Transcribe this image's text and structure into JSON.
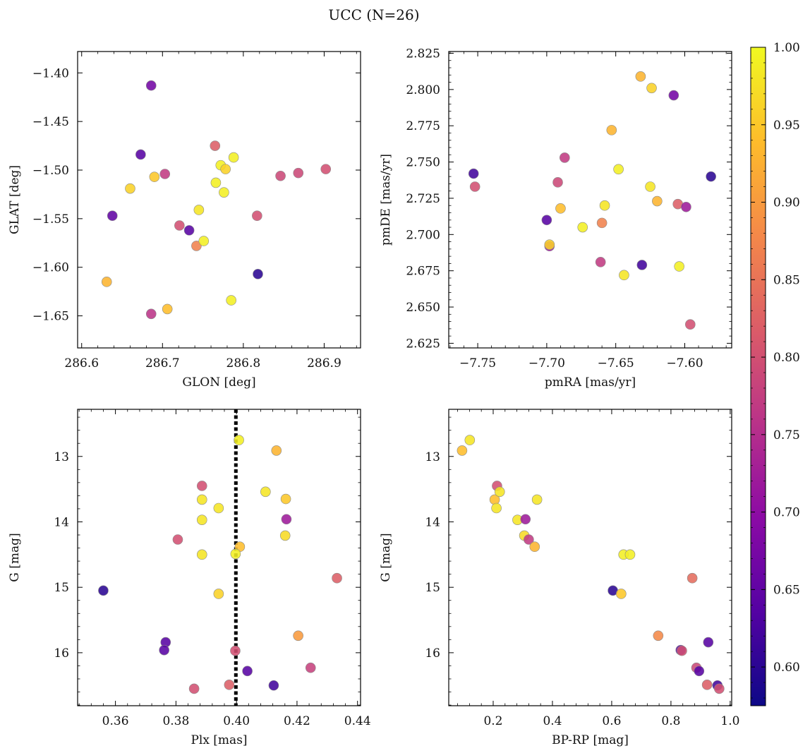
{
  "figure": {
    "title": "UCC (N=26)"
  },
  "colorbar": {
    "colormap": "plasma",
    "min": 0.575,
    "max": 1.0,
    "ticks": [
      "0.60",
      "0.65",
      "0.70",
      "0.75",
      "0.80",
      "0.85",
      "0.90",
      "0.95",
      "1.00"
    ],
    "tick_values": [
      0.6,
      0.65,
      0.7,
      0.75,
      0.8,
      0.85,
      0.9,
      0.95,
      1.0
    ]
  },
  "chart_data": [
    {
      "type": "scatter",
      "xlabel": "GLON [deg]",
      "ylabel": "GLAT [deg]",
      "xlim": [
        286.595,
        286.945
      ],
      "ylim": [
        -1.683,
        -1.378
      ],
      "invert_y": false,
      "xticks": [
        286.6,
        286.7,
        286.8,
        286.9
      ],
      "xtick_labels": [
        "286.6",
        "286.7",
        "286.8",
        "286.9"
      ],
      "yticks": [
        -1.4,
        -1.45,
        -1.5,
        -1.55,
        -1.6,
        -1.65
      ],
      "ytick_labels": [
        "−1.40",
        "−1.45",
        "−1.50",
        "−1.55",
        "−1.60",
        "−1.65"
      ],
      "x": [
        286.686,
        286.673,
        286.638,
        286.703,
        286.66,
        286.69,
        286.733,
        286.721,
        286.742,
        286.745,
        286.751,
        286.765,
        286.766,
        286.772,
        286.778,
        286.776,
        286.788,
        286.785,
        286.817,
        286.818,
        286.846,
        286.868,
        286.902,
        286.631,
        286.706,
        286.686
      ],
      "y": [
        -1.413,
        -1.484,
        -1.547,
        -1.504,
        -1.519,
        -1.507,
        -1.562,
        -1.557,
        -1.578,
        -1.541,
        -1.573,
        -1.475,
        -1.513,
        -1.495,
        -1.499,
        -1.523,
        -1.487,
        -1.634,
        -1.547,
        -1.607,
        -1.506,
        -1.503,
        -1.499,
        -1.615,
        -1.643,
        -1.648
      ],
      "color_values": [
        0.67,
        0.64,
        0.65,
        0.77,
        0.96,
        0.95,
        0.64,
        0.8,
        0.87,
        0.98,
        0.99,
        0.82,
        0.99,
        0.99,
        0.96,
        0.99,
        0.99,
        0.99,
        0.8,
        0.6,
        0.79,
        0.79,
        0.8,
        0.93,
        0.94,
        0.76
      ]
    },
    {
      "type": "scatter",
      "xlabel": "pmRA [mas/yr]",
      "ylabel": "pmDE [mas/yr]",
      "xlim": [
        -7.771,
        -7.566
      ],
      "ylim": [
        2.6218,
        2.8262
      ],
      "invert_y": false,
      "xticks": [
        -7.75,
        -7.7,
        -7.65,
        -7.6
      ],
      "xtick_labels": [
        "−7.75",
        "−7.70",
        "−7.65",
        "−7.60"
      ],
      "yticks": [
        2.625,
        2.65,
        2.675,
        2.7,
        2.725,
        2.75,
        2.775,
        2.8,
        2.825
      ],
      "ytick_labels": [
        "2.625",
        "2.650",
        "2.675",
        "2.700",
        "2.725",
        "2.750",
        "2.775",
        "2.800",
        "2.825"
      ],
      "x": [
        -7.753,
        -7.752,
        -7.7,
        -7.698,
        -7.698,
        -7.692,
        -7.69,
        -7.687,
        -7.674,
        -7.661,
        -7.66,
        -7.658,
        -7.653,
        -7.648,
        -7.644,
        -7.632,
        -7.631,
        -7.625,
        -7.624,
        -7.62,
        -7.608,
        -7.605,
        -7.604,
        -7.599,
        -7.596,
        -7.581
      ],
      "y": [
        2.742,
        2.733,
        2.71,
        2.692,
        2.693,
        2.736,
        2.718,
        2.753,
        2.705,
        2.681,
        2.708,
        2.72,
        2.772,
        2.745,
        2.672,
        2.809,
        2.679,
        2.733,
        2.801,
        2.723,
        2.796,
        2.721,
        2.678,
        2.719,
        2.638,
        2.74
      ],
      "color_values": [
        0.62,
        0.8,
        0.64,
        0.72,
        0.96,
        0.79,
        0.94,
        0.77,
        0.99,
        0.77,
        0.87,
        0.98,
        0.93,
        0.99,
        0.98,
        0.93,
        0.62,
        0.98,
        0.96,
        0.93,
        0.67,
        0.82,
        0.99,
        0.72,
        0.8,
        0.6
      ]
    },
    {
      "type": "scatter",
      "xlabel": "Plx [mas]",
      "ylabel": "G [mag]",
      "xlim": [
        0.3475,
        0.441
      ],
      "ylim": [
        16.81,
        12.28
      ],
      "invert_y": true,
      "vline": 0.3998,
      "xticks": [
        0.36,
        0.38,
        0.4,
        0.42,
        0.44
      ],
      "xtick_labels": [
        "0.36",
        "0.38",
        "0.40",
        "0.42",
        "0.44"
      ],
      "yticks": [
        13,
        14,
        15,
        16
      ],
      "ytick_labels": [
        "13",
        "14",
        "15",
        "16"
      ],
      "x": [
        0.4008,
        0.4132,
        0.3886,
        0.3886,
        0.3941,
        0.4096,
        0.4163,
        0.3886,
        0.4165,
        0.4011,
        0.3806,
        0.4161,
        0.3886,
        0.3997,
        0.4332,
        0.356,
        0.3941,
        0.4204,
        0.3766,
        0.3761,
        0.3996,
        0.4036,
        0.4245,
        0.386,
        0.3976,
        0.4123
      ],
      "y": [
        12.75,
        12.91,
        13.45,
        13.66,
        13.79,
        13.54,
        13.65,
        13.97,
        13.96,
        14.38,
        14.27,
        14.21,
        14.5,
        14.49,
        14.86,
        15.05,
        15.1,
        15.74,
        15.84,
        15.96,
        15.97,
        16.28,
        16.23,
        16.55,
        16.49,
        16.5
      ],
      "color_values": [
        0.99,
        0.93,
        0.8,
        0.98,
        0.98,
        0.98,
        0.95,
        0.98,
        0.72,
        0.94,
        0.8,
        0.97,
        0.98,
        0.99,
        0.82,
        0.6,
        0.96,
        0.9,
        0.64,
        0.64,
        0.8,
        0.64,
        0.78,
        0.8,
        0.82,
        0.62
      ]
    },
    {
      "type": "scatter",
      "xlabel": "BP-RP [mag]",
      "ylabel": "G [mag]",
      "xlim": [
        0.05,
        1.005
      ],
      "ylim": [
        16.81,
        12.28
      ],
      "invert_y": true,
      "xticks": [
        0.2,
        0.4,
        0.6,
        0.8,
        1.0
      ],
      "xtick_labels": [
        "0.2",
        "0.4",
        "0.6",
        "0.8",
        "1.0"
      ],
      "yticks": [
        13,
        14,
        15,
        16
      ],
      "ytick_labels": [
        "13",
        "14",
        "15",
        "16"
      ],
      "x": [
        0.095,
        0.121,
        0.213,
        0.205,
        0.222,
        0.211,
        0.282,
        0.348,
        0.309,
        0.305,
        0.32,
        0.34,
        0.64,
        0.662,
        0.604,
        0.632,
        0.872,
        0.757,
        0.926,
        0.833,
        0.837,
        0.886,
        0.895,
        0.922,
        0.957,
        0.963
      ],
      "y": [
        12.91,
        12.75,
        13.45,
        13.66,
        13.54,
        13.79,
        13.97,
        13.66,
        13.96,
        14.21,
        14.27,
        14.38,
        14.5,
        14.5,
        15.05,
        15.1,
        14.86,
        15.74,
        15.84,
        15.96,
        15.97,
        16.23,
        16.28,
        16.49,
        16.5,
        16.55
      ],
      "color_values": [
        0.94,
        0.98,
        0.8,
        0.94,
        0.98,
        0.98,
        0.98,
        0.98,
        0.72,
        0.97,
        0.77,
        0.93,
        0.99,
        0.99,
        0.6,
        0.95,
        0.84,
        0.88,
        0.64,
        0.64,
        0.8,
        0.79,
        0.64,
        0.82,
        0.62,
        0.8
      ]
    }
  ]
}
